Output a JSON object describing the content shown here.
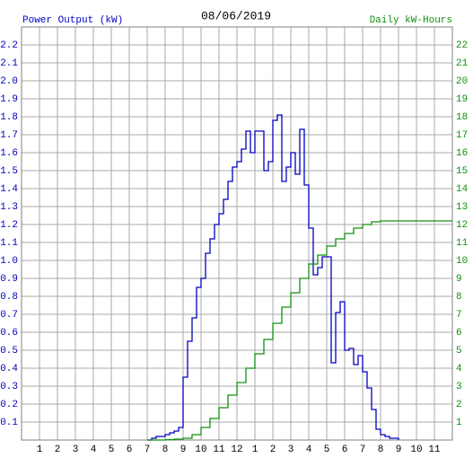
{
  "chart_data": {
    "type": "step-line",
    "title": "08/06/2019",
    "ylabel": "Power Output (kW)",
    "y2label": "Daily kW-Hours",
    "xlim": [
      0,
      24
    ],
    "xticks": [
      1,
      2,
      3,
      4,
      5,
      6,
      7,
      8,
      9,
      10,
      11,
      12,
      {
        "value": 13,
        "label": "1"
      },
      {
        "value": 14,
        "label": "2"
      },
      {
        "value": 15,
        "label": "3"
      },
      {
        "value": 16,
        "label": "4"
      },
      {
        "value": 17,
        "label": "5"
      },
      {
        "value": 18,
        "label": "6"
      },
      {
        "value": 19,
        "label": "7"
      },
      {
        "value": 20,
        "label": "8"
      },
      {
        "value": 21,
        "label": "9"
      },
      {
        "value": 22,
        "label": "10"
      },
      {
        "value": 23,
        "label": "11"
      }
    ],
    "ylim": [
      0,
      2.3
    ],
    "yticks": [
      0.1,
      0.2,
      0.3,
      0.4,
      0.5,
      0.6,
      0.7,
      0.8,
      0.9,
      {
        "value": 1,
        "label": "1.0"
      },
      1.1,
      1.2,
      1.3,
      1.4,
      1.5,
      1.6,
      1.7,
      1.8,
      1.9,
      {
        "value": 2,
        "label": "2.0"
      },
      2.1,
      2.2
    ],
    "y2lim": [
      0,
      23
    ],
    "y2ticks": [
      1,
      2,
      3,
      4,
      5,
      6,
      7,
      8,
      9,
      10,
      11,
      12,
      13,
      14,
      15,
      16,
      17,
      18,
      19,
      20,
      21,
      22
    ],
    "grid": true,
    "series": [
      {
        "color": "#0000c0",
        "axis": "y",
        "x": [
          7,
          7.25,
          7.5,
          7.75,
          8,
          8.25,
          8.5,
          8.75,
          9,
          9.25,
          9.5,
          9.75,
          10,
          10.25,
          10.5,
          10.75,
          11,
          11.25,
          11.5,
          11.75,
          12,
          12.25,
          12.5,
          12.75,
          13,
          13.25,
          13.5,
          13.75,
          14,
          14.25,
          14.5,
          14.75,
          15,
          15.25,
          15.5,
          15.75,
          16,
          16.25,
          16.5,
          16.75,
          17,
          17.25,
          17.5,
          17.75,
          18,
          18.25,
          18.5,
          18.75,
          19,
          19.25,
          19.5,
          19.75,
          20,
          20.25,
          20.5,
          20.75,
          21
        ],
        "values": [
          0,
          0.01,
          0.02,
          0.02,
          0.03,
          0.04,
          0.05,
          0.07,
          0.35,
          0.55,
          0.68,
          0.85,
          0.9,
          1.04,
          1.12,
          1.2,
          1.26,
          1.34,
          1.44,
          1.52,
          1.55,
          1.62,
          1.72,
          1.6,
          1.72,
          1.72,
          1.5,
          1.55,
          1.78,
          1.81,
          1.44,
          1.52,
          1.6,
          1.48,
          1.73,
          1.42,
          1.18,
          0.92,
          0.96,
          1.02,
          1.02,
          0.43,
          0.71,
          0.77,
          0.5,
          0.51,
          0.42,
          0.47,
          0.38,
          0.29,
          0.17,
          0.06,
          0.03,
          0.02,
          0.01,
          0.01,
          0
        ]
      },
      {
        "color": "#109010",
        "axis": "y2",
        "x": [
          7,
          7.5,
          8,
          8.5,
          9,
          9.5,
          10,
          10.5,
          11,
          11.5,
          12,
          12.5,
          13,
          13.5,
          14,
          14.5,
          15,
          15.5,
          16,
          16.5,
          17,
          17.5,
          18,
          18.5,
          19,
          19.5,
          20,
          24
        ],
        "values": [
          0,
          0,
          0.02,
          0.05,
          0.1,
          0.3,
          0.7,
          1.2,
          1.8,
          2.5,
          3.2,
          4.0,
          4.8,
          5.6,
          6.5,
          7.4,
          8.2,
          9.0,
          9.8,
          10.3,
          10.8,
          11.2,
          11.5,
          11.8,
          12.0,
          12.15,
          12.2,
          12.2
        ]
      }
    ]
  }
}
